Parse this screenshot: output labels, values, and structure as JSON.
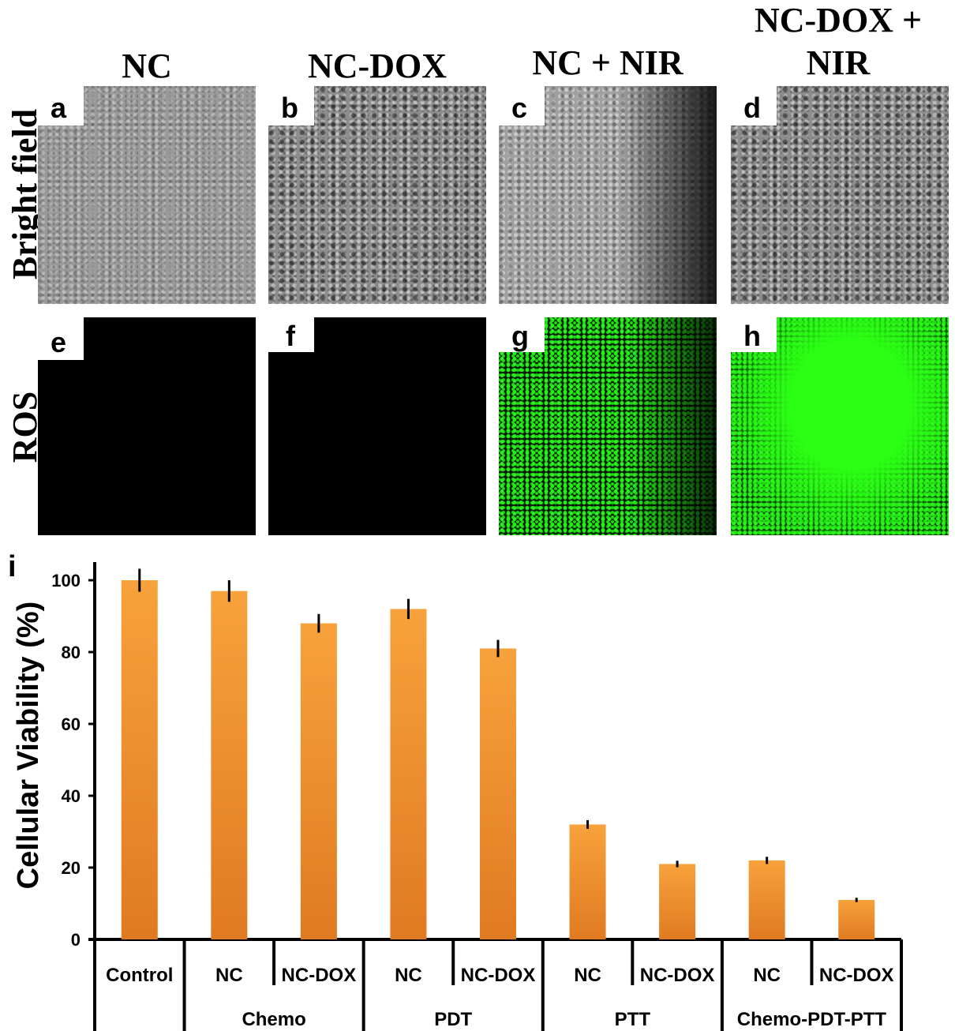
{
  "columns": [
    {
      "title": "NC"
    },
    {
      "title": "NC-DOX"
    },
    {
      "title": "NC + NIR"
    },
    {
      "title_line1": "NC-DOX +",
      "title_line2": "NIR"
    }
  ],
  "rows": [
    {
      "label": "Bright field"
    },
    {
      "label": "ROS"
    }
  ],
  "panel_labels": [
    "a",
    "b",
    "c",
    "d",
    "e",
    "f",
    "g",
    "h"
  ],
  "chart_panel_label": "i",
  "chart_data": {
    "type": "bar",
    "ylabel": "Cellular Viability (%)",
    "ylim": [
      0,
      100
    ],
    "yticks": [
      0,
      20,
      40,
      60,
      80,
      100
    ],
    "categories": [
      "Control",
      "NC",
      "NC-DOX",
      "NC",
      "NC-DOX",
      "NC",
      "NC-DOX",
      "NC",
      "NC-DOX"
    ],
    "values": [
      100,
      97,
      88,
      92,
      81,
      32,
      21,
      22,
      11
    ],
    "errors": [
      3.2,
      3.0,
      2.6,
      2.8,
      2.4,
      1.2,
      0.9,
      1.0,
      0.6
    ],
    "groups": [
      {
        "label": "",
        "span": 1
      },
      {
        "label": "Chemo",
        "span": 2
      },
      {
        "label": "PDT",
        "span": 2
      },
      {
        "label": "PTT",
        "span": 2
      },
      {
        "label": "Chemo-PDT-PTT",
        "span": 2
      }
    ],
    "bar_color_top": "#f7a23c",
    "bar_color_bottom": "#e07a22"
  }
}
